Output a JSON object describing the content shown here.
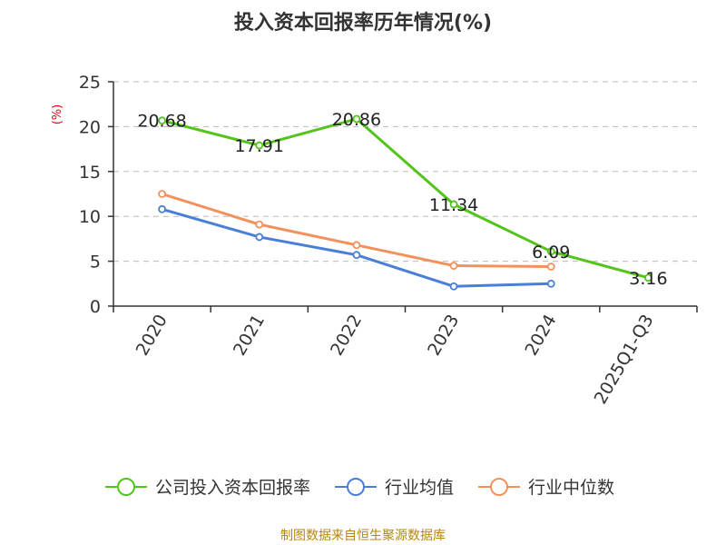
{
  "chart_data": {
    "type": "line",
    "title": "投入资本回报率历年情况(%)",
    "ylabel": "(%)",
    "xlabel": "",
    "categories": [
      "2020",
      "2021",
      "2022",
      "2023",
      "2024",
      "2025Q1-Q3"
    ],
    "ylim": [
      0,
      25
    ],
    "yticks": [
      0,
      5,
      10,
      15,
      20,
      25
    ],
    "grid": true,
    "legend_position": "bottom",
    "series": [
      {
        "name": "公司投入资本回报率",
        "color": "#52c41a",
        "values": [
          20.68,
          17.91,
          20.86,
          11.34,
          6.09,
          3.16
        ],
        "labels": [
          "20.68",
          "17.91",
          "20.86",
          "11.34",
          "6.09",
          "3.16"
        ],
        "show_labels": true
      },
      {
        "name": "行业均值",
        "color": "#4a7fd9",
        "values": [
          10.8,
          7.7,
          5.7,
          2.2,
          2.5,
          null
        ],
        "show_labels": false
      },
      {
        "name": "行业中位数",
        "color": "#f4915b",
        "values": [
          12.5,
          9.1,
          6.8,
          4.5,
          4.4,
          null
        ],
        "show_labels": false
      }
    ]
  },
  "source": "制图数据来自恒生聚源数据库"
}
